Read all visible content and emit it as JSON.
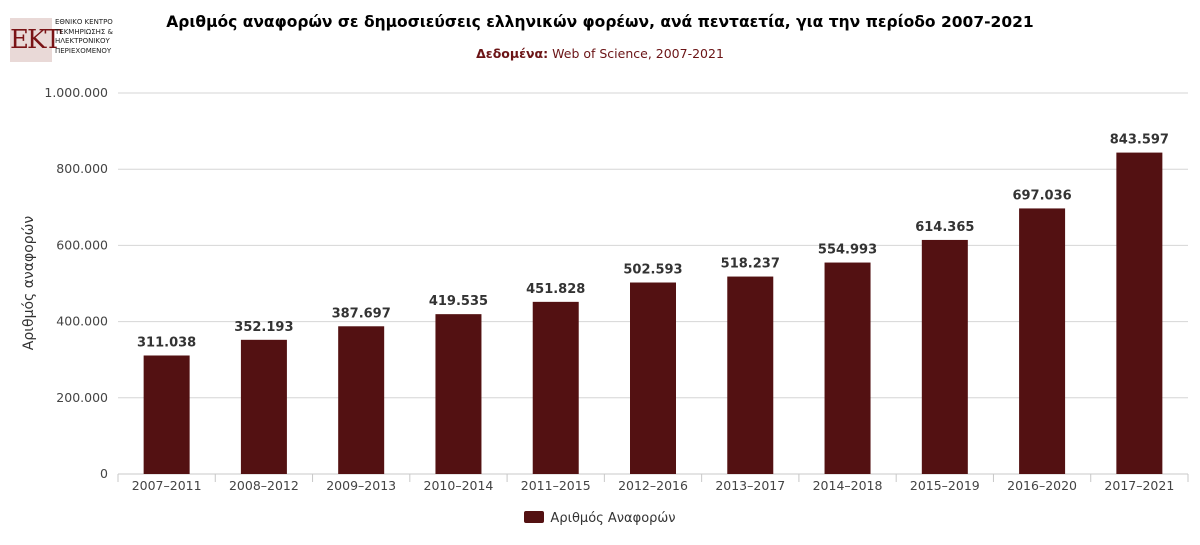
{
  "logo": {
    "mark": "EKT",
    "lines": [
      "ΕΘΝΙΚΟ ΚΕΝΤΡΟ",
      "ΤΕΚΜΗΡΙΩΣΗΣ &",
      "ΗΛΕΚΤΡΟΝΙΚΟΥ",
      "ΠΕΡΙΕΧΟΜΕΝΟΥ"
    ]
  },
  "colors": {
    "bar": "#531112",
    "accent": "#6b1416"
  },
  "chart_data": {
    "type": "bar",
    "title": "Αριθμός αναφορών σε δημοσιεύσεις ελληνικών φορέων, ανά πενταετία, για την περίοδο 2007-2021",
    "subtitle_label": "Δεδομένα:",
    "subtitle_value": "Web of Science, 2007-2021",
    "xlabel": "",
    "ylabel": "Αριθμός αναφορών",
    "ylim": [
      0,
      1000000
    ],
    "yticks": [
      0,
      200000,
      400000,
      600000,
      800000,
      1000000
    ],
    "ytick_labels": [
      "0",
      "200.000",
      "400.000",
      "600.000",
      "800.000",
      "1.000.000"
    ],
    "categories": [
      "2007–2011",
      "2008–2012",
      "2009–2013",
      "2010–2014",
      "2011–2015",
      "2012–2016",
      "2013–2017",
      "2014–2018",
      "2015–2019",
      "2016–2020",
      "2017–2021"
    ],
    "series": [
      {
        "name": "Αριθμός Αναφορών",
        "values": [
          311038,
          352193,
          387697,
          419535,
          451828,
          502593,
          518237,
          554993,
          614365,
          697036,
          843597
        ],
        "labels": [
          "311.038",
          "352.193",
          "387.697",
          "419.535",
          "451.828",
          "502.593",
          "518.237",
          "554.993",
          "614.365",
          "697.036",
          "843.597"
        ]
      }
    ],
    "grid": true,
    "legend": "bottom-center"
  }
}
